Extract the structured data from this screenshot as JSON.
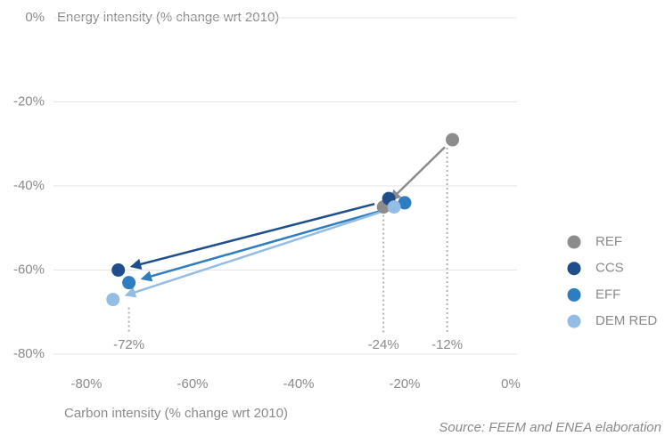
{
  "chart_data": {
    "type": "scatter",
    "y_axis_label": "Energy intensity (% change wrt 2010)",
    "x_axis_label": "Carbon intensity (% change wrt 2010)",
    "source": "Source: FEEM and ENEA elaboration",
    "xlim": [
      -80,
      0
    ],
    "ylim": [
      -80,
      0
    ],
    "xticks": [
      {
        "value": -80,
        "label": "-80%"
      },
      {
        "value": -60,
        "label": "-60%"
      },
      {
        "value": -40,
        "label": "-40%"
      },
      {
        "value": -20,
        "label": "-20%"
      },
      {
        "value": 0,
        "label": "0%"
      }
    ],
    "yticks": [
      {
        "value": 0,
        "label": "0%"
      },
      {
        "value": -20,
        "label": "-20%"
      },
      {
        "value": -40,
        "label": "-40%"
      },
      {
        "value": -60,
        "label": "-60%"
      },
      {
        "value": -80,
        "label": "-80%"
      }
    ],
    "grid": true,
    "legend": "right",
    "series": [
      {
        "name": "REF",
        "color": "#8c8c8c",
        "x": [
          -11,
          -24
        ],
        "values": [
          -29,
          -45
        ]
      },
      {
        "name": "CCS",
        "color": "#1f4e8c",
        "x": [
          -23,
          -74
        ],
        "values": [
          -43,
          -60
        ]
      },
      {
        "name": "EFF",
        "color": "#2e7dc0",
        "x": [
          -20,
          -72
        ],
        "values": [
          -44,
          -63
        ]
      },
      {
        "name": "DEM RED",
        "color": "#94bde6",
        "x": [
          -22,
          -75
        ],
        "values": [
          -45,
          -67
        ]
      }
    ],
    "annotations": [
      {
        "value": -72,
        "label": "-72%"
      },
      {
        "value": -24,
        "label": "-24%"
      },
      {
        "value": -12,
        "label": "-12%"
      }
    ]
  }
}
